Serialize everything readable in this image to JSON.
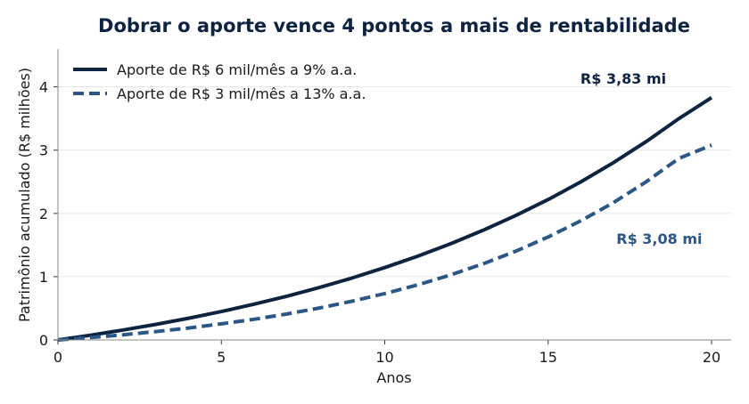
{
  "chart_data": {
    "type": "line",
    "title": "Dobrar o aporte vence 4 pontos a mais de rentabilidade",
    "xlabel": "Anos",
    "ylabel": "Patrimônio acumulado (R$ milhões)",
    "xlim": [
      0,
      20.6
    ],
    "ylim": [
      0,
      4.6
    ],
    "xticks": [
      0,
      5,
      10,
      15,
      20
    ],
    "yticks": [
      0,
      1,
      2,
      3,
      4
    ],
    "grid": "horizontal",
    "legend_position": "top-left",
    "colors": {
      "series_a": "#0d2340",
      "series_b": "#2c5784"
    },
    "x": [
      0,
      1,
      2,
      3,
      4,
      5,
      6,
      7,
      8,
      9,
      10,
      11,
      12,
      13,
      14,
      15,
      16,
      17,
      18,
      19,
      20
    ],
    "series": [
      {
        "name": "Aporte de R$ 6 mil/mês a 9% a.a.",
        "style": "solid",
        "values": [
          0,
          0.075,
          0.157,
          0.246,
          0.343,
          0.449,
          0.565,
          0.691,
          0.829,
          0.979,
          1.143,
          1.322,
          1.518,
          1.732,
          1.965,
          2.22,
          2.499,
          2.803,
          3.135,
          3.498,
          3.83
        ]
      },
      {
        "name": "Aporte de R$ 3 mil/mês a 13% a.a.",
        "style": "dashed",
        "values": [
          0,
          0.038,
          0.082,
          0.132,
          0.189,
          0.254,
          0.327,
          0.41,
          0.505,
          0.612,
          0.733,
          0.87,
          1.026,
          1.202,
          1.401,
          1.627,
          1.883,
          2.172,
          2.5,
          2.87,
          3.08
        ]
      }
    ],
    "annotations": [
      {
        "text": "R$ 3,83 mi",
        "x": 17.3,
        "y": 4.05,
        "series": 0
      },
      {
        "text": "R$ 3,08 mi",
        "x": 18.4,
        "y": 1.52,
        "series": 1
      }
    ]
  }
}
